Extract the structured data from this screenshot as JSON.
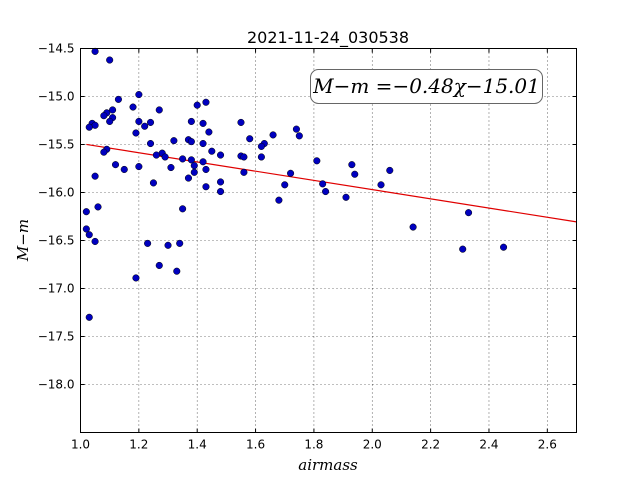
{
  "chart_data": {
    "type": "scatter",
    "title": "2021-11-24_030538",
    "xlabel": "airmass",
    "ylabel": "M−m",
    "xlim": [
      1.0,
      2.7
    ],
    "ylim": [
      -18.5,
      -14.5
    ],
    "y_inverted": true,
    "grid": true,
    "x_ticks": [
      "1.0",
      "1.2",
      "1.4",
      "1.6",
      "1.8",
      "2.0",
      "2.2",
      "2.4",
      "2.6"
    ],
    "y_ticks": [
      "−14.5",
      "−15.0",
      "−15.5",
      "−16.0",
      "−16.5",
      "−17.0",
      "−17.5",
      "−18.0"
    ],
    "annotation": "M−m =−0.48χ−15.01",
    "colors": {
      "points": "#0000bf",
      "fit": "#e00000"
    },
    "fit": {
      "slope": -0.48,
      "intercept": -15.01,
      "x_range": [
        1.02,
        2.7
      ]
    },
    "points": [
      [
        1.05,
        -14.53
      ],
      [
        1.1,
        -14.62
      ],
      [
        1.2,
        -14.98
      ],
      [
        1.13,
        -15.03
      ],
      [
        1.43,
        -15.06
      ],
      [
        1.4,
        -15.09
      ],
      [
        1.18,
        -15.11
      ],
      [
        1.27,
        -15.14
      ],
      [
        1.11,
        -15.14
      ],
      [
        1.09,
        -15.17
      ],
      [
        1.08,
        -15.2
      ],
      [
        1.11,
        -15.22
      ],
      [
        1.1,
        -15.26
      ],
      [
        1.2,
        -15.26
      ],
      [
        1.24,
        -15.27
      ],
      [
        1.04,
        -15.28
      ],
      [
        1.38,
        -15.26
      ],
      [
        1.42,
        -15.28
      ],
      [
        1.55,
        -15.27
      ],
      [
        1.05,
        -15.3
      ],
      [
        1.22,
        -15.31
      ],
      [
        1.03,
        -15.32
      ],
      [
        1.74,
        -15.34
      ],
      [
        1.44,
        -15.37
      ],
      [
        1.19,
        -15.38
      ],
      [
        1.66,
        -15.4
      ],
      [
        1.75,
        -15.41
      ],
      [
        1.58,
        -15.44
      ],
      [
        1.32,
        -15.46
      ],
      [
        1.37,
        -15.45
      ],
      [
        1.38,
        -15.47
      ],
      [
        1.42,
        -15.49
      ],
      [
        1.24,
        -15.49
      ],
      [
        1.63,
        -15.49
      ],
      [
        1.62,
        -15.52
      ],
      [
        1.09,
        -15.55
      ],
      [
        1.08,
        -15.58
      ],
      [
        1.45,
        -15.57
      ],
      [
        1.28,
        -15.59
      ],
      [
        1.26,
        -15.61
      ],
      [
        1.29,
        -15.63
      ],
      [
        1.48,
        -15.61
      ],
      [
        1.55,
        -15.62
      ],
      [
        1.56,
        -15.63
      ],
      [
        1.62,
        -15.63
      ],
      [
        1.35,
        -15.65
      ],
      [
        1.38,
        -15.66
      ],
      [
        1.42,
        -15.68
      ],
      [
        1.81,
        -15.67
      ],
      [
        1.12,
        -15.71
      ],
      [
        1.93,
        -15.71
      ],
      [
        1.39,
        -15.72
      ],
      [
        1.2,
        -15.73
      ],
      [
        1.31,
        -15.74
      ],
      [
        1.15,
        -15.76
      ],
      [
        1.43,
        -15.76
      ],
      [
        1.39,
        -15.79
      ],
      [
        1.56,
        -15.79
      ],
      [
        2.06,
        -15.77
      ],
      [
        1.72,
        -15.8
      ],
      [
        1.94,
        -15.81
      ],
      [
        1.05,
        -15.83
      ],
      [
        1.37,
        -15.85
      ],
      [
        1.48,
        -15.89
      ],
      [
        1.25,
        -15.9
      ],
      [
        1.7,
        -15.92
      ],
      [
        1.83,
        -15.91
      ],
      [
        2.03,
        -15.92
      ],
      [
        1.43,
        -15.94
      ],
      [
        1.84,
        -15.99
      ],
      [
        1.48,
        -15.99
      ],
      [
        1.91,
        -16.05
      ],
      [
        1.68,
        -16.08
      ],
      [
        1.06,
        -16.15
      ],
      [
        1.35,
        -16.17
      ],
      [
        1.02,
        -16.2
      ],
      [
        2.33,
        -16.21
      ],
      [
        2.14,
        -16.36
      ],
      [
        1.02,
        -16.38
      ],
      [
        1.03,
        -16.44
      ],
      [
        1.05,
        -16.51
      ],
      [
        1.23,
        -16.53
      ],
      [
        1.34,
        -16.53
      ],
      [
        1.3,
        -16.55
      ],
      [
        2.45,
        -16.57
      ],
      [
        2.31,
        -16.59
      ],
      [
        1.27,
        -16.76
      ],
      [
        1.33,
        -16.82
      ],
      [
        1.19,
        -16.89
      ],
      [
        1.03,
        -17.3
      ]
    ]
  }
}
